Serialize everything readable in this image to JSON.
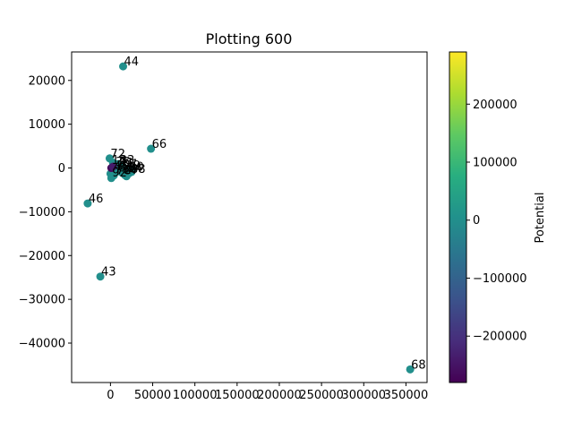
{
  "chart_data": {
    "type": "scatter",
    "title": "Plotting 600",
    "xlabel": "",
    "ylabel": "",
    "xlim": [
      -46000,
      375000
    ],
    "ylim": [
      -49000,
      26500
    ],
    "x_ticks": [
      0,
      50000,
      100000,
      150000,
      200000,
      250000,
      300000,
      350000
    ],
    "x_tick_labels": [
      "0",
      "50000",
      "100000",
      "150000",
      "200000",
      "250000",
      "300000",
      "350000"
    ],
    "y_ticks": [
      -40000,
      -30000,
      -20000,
      -10000,
      0,
      10000,
      20000
    ],
    "y_tick_labels": [
      "−40000",
      "−30000",
      "−20000",
      "−10000",
      "0",
      "10000",
      "20000"
    ],
    "colorbar": {
      "label": "Potential",
      "colormap": "viridis",
      "range": [
        -280000,
        290000
      ],
      "ticks": [
        -200000,
        -100000,
        0,
        100000,
        200000
      ],
      "tick_labels": [
        "−200000",
        "−100000",
        "0",
        "100000",
        "200000"
      ]
    },
    "points": [
      {
        "label": "44",
        "x": 15000,
        "y": 23200,
        "potential": 0
      },
      {
        "label": "66",
        "x": 48000,
        "y": 4400,
        "potential": 0
      },
      {
        "label": "72",
        "x": -1000,
        "y": 2200,
        "potential": 0
      },
      {
        "label": "46",
        "x": -27000,
        "y": -8100,
        "potential": 0
      },
      {
        "label": "43",
        "x": -12000,
        "y": -24800,
        "potential": 0
      },
      {
        "label": "68",
        "x": 355000,
        "y": -46000,
        "potential": 0
      },
      {
        "label": "",
        "x": 3000,
        "y": 1200,
        "potential": 0
      },
      {
        "label": "",
        "x": 6000,
        "y": 800,
        "potential": 0
      },
      {
        "label": "",
        "x": 9000,
        "y": 900,
        "potential": 0
      },
      {
        "label": "",
        "x": 12000,
        "y": 600,
        "potential": 0
      },
      {
        "label": "",
        "x": 15000,
        "y": 300,
        "potential": 0
      },
      {
        "label": "",
        "x": 18000,
        "y": -200,
        "potential": 0
      },
      {
        "label": "",
        "x": 21000,
        "y": -500,
        "potential": 0
      },
      {
        "label": "",
        "x": 24000,
        "y": -700,
        "potential": 0
      },
      {
        "label": "",
        "x": 26000,
        "y": -300,
        "potential": 0
      },
      {
        "label": "",
        "x": 2000,
        "y": -400,
        "potential": 0
      },
      {
        "label": "",
        "x": 5000,
        "y": -900,
        "potential": 0
      },
      {
        "label": "",
        "x": 8000,
        "y": -300,
        "potential": 0
      },
      {
        "label": "",
        "x": 11000,
        "y": -800,
        "potential": 0
      },
      {
        "label": "",
        "x": 14000,
        "y": -1100,
        "potential": 0
      },
      {
        "label": "",
        "x": 17000,
        "y": -1600,
        "potential": 0
      },
      {
        "label": "",
        "x": 19000,
        "y": -1900,
        "potential": 0
      },
      {
        "label": "",
        "x": 0,
        "y": -1300,
        "potential": 0
      },
      {
        "label": "",
        "x": 1000,
        "y": -2300,
        "potential": 0
      },
      {
        "label": "",
        "x": 4000,
        "y": -1700,
        "potential": 0
      },
      {
        "label": "",
        "x": 7000,
        "y": 400,
        "potential": 0
      },
      {
        "label": "",
        "x": 10000,
        "y": -200,
        "potential": 0
      },
      {
        "label": "",
        "x": 13000,
        "y": 100,
        "potential": 0
      },
      {
        "label": "",
        "x": 22000,
        "y": -1200,
        "potential": 0
      },
      {
        "label": "",
        "x": 25000,
        "y": -900,
        "potential": 0
      },
      {
        "label": "",
        "x": 1000,
        "y": 0,
        "potential": -270000
      },
      {
        "label": "",
        "x": 3000,
        "y": 300,
        "potential": -240000
      }
    ],
    "cluster_labels": [
      {
        "text": "12",
        "x": 1500,
        "y": 900
      },
      {
        "text": "36",
        "x": 6000,
        "y": 500
      },
      {
        "text": "81",
        "x": 10000,
        "y": 300
      },
      {
        "text": "57",
        "x": 14000,
        "y": 0
      },
      {
        "text": "29",
        "x": 18000,
        "y": -300
      },
      {
        "text": "90",
        "x": 22000,
        "y": -600
      },
      {
        "text": "45",
        "x": 4000,
        "y": -500
      },
      {
        "text": "63",
        "x": 9000,
        "y": -800
      },
      {
        "text": "18",
        "x": 13000,
        "y": -1000
      },
      {
        "text": "92",
        "x": 2000,
        "y": -1900
      },
      {
        "text": "27",
        "x": 16000,
        "y": -1300
      },
      {
        "text": "78",
        "x": 7000,
        "y": -1400
      },
      {
        "text": "54",
        "x": 20000,
        "y": -900
      },
      {
        "text": "33",
        "x": 11000,
        "y": 900
      },
      {
        "text": "88",
        "x": 24000,
        "y": -1100
      }
    ]
  }
}
